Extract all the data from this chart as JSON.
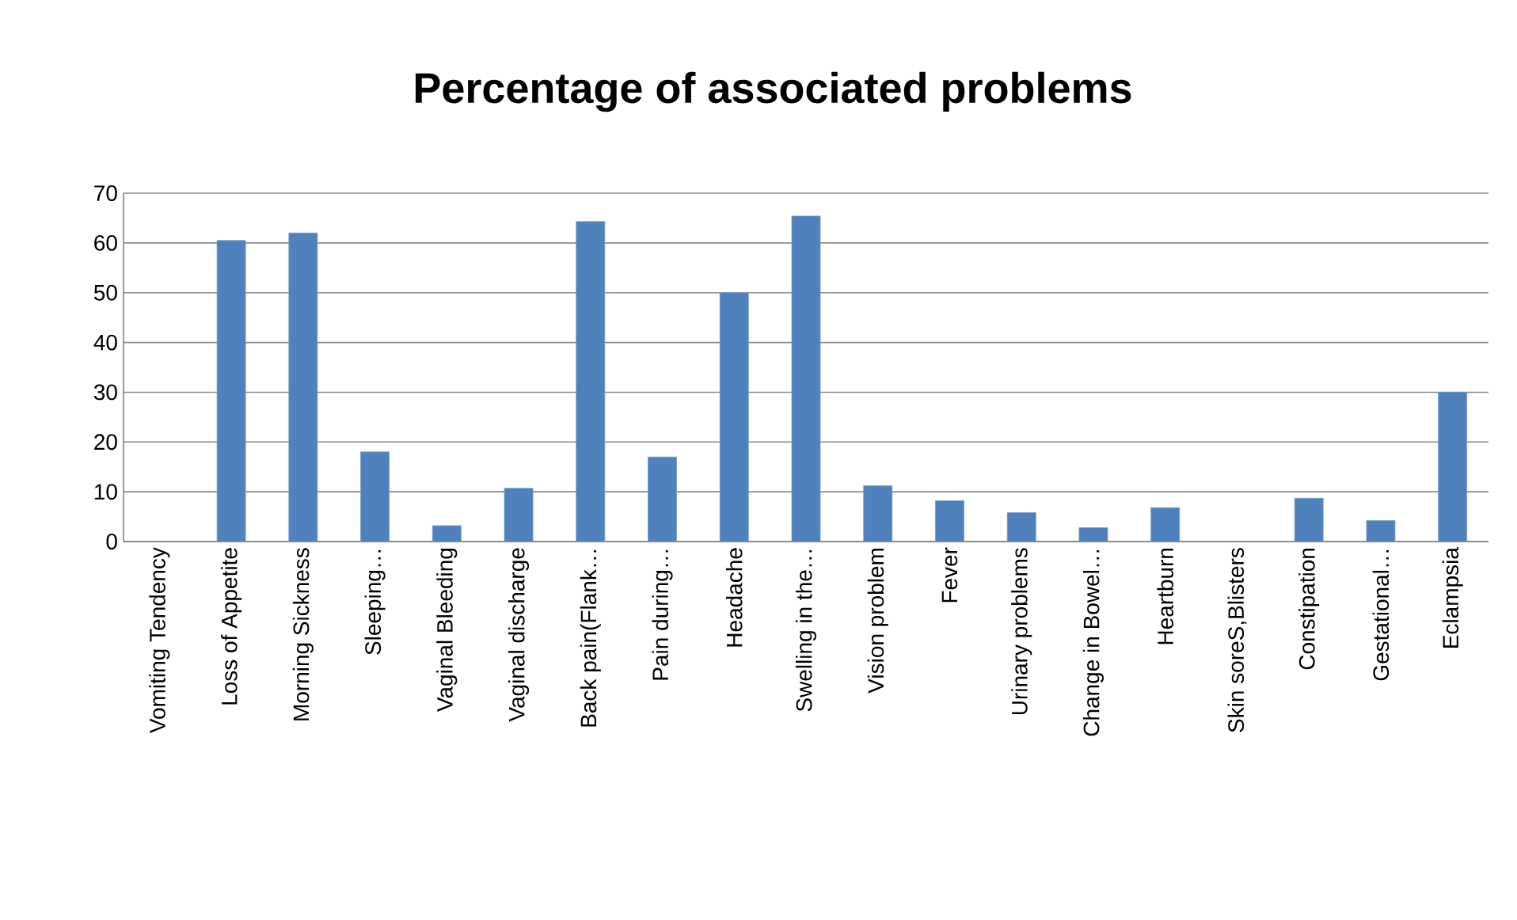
{
  "chart_data": {
    "type": "bar",
    "title": "Percentage of associated problems",
    "categories": [
      "Vomiting Tendency",
      "Loss of Appetite",
      "Morning Sickness",
      "Sleeping…",
      "Vaginal Bleeding",
      "Vaginal discharge",
      "Back pain(Flank…",
      "Pain during…",
      "Headache",
      "Swelling in the…",
      "Vision problem",
      "Fever",
      "Urinary problems",
      "Change in Bowel…",
      "Heartburn",
      "Skin soreS,Blisters",
      "Constipation",
      "Gestational…",
      "Eclampsia"
    ],
    "values": [
      0,
      60.5,
      62,
      18,
      3.2,
      10.7,
      64.3,
      17,
      50,
      65.4,
      11.2,
      8.2,
      5.8,
      2.8,
      6.8,
      0,
      8.7,
      4.2,
      30
    ],
    "color": "#4f81bd",
    "ylim": [
      0,
      70
    ],
    "yticks": [
      0,
      10,
      20,
      30,
      40,
      50,
      60,
      70
    ],
    "grid": "y"
  }
}
